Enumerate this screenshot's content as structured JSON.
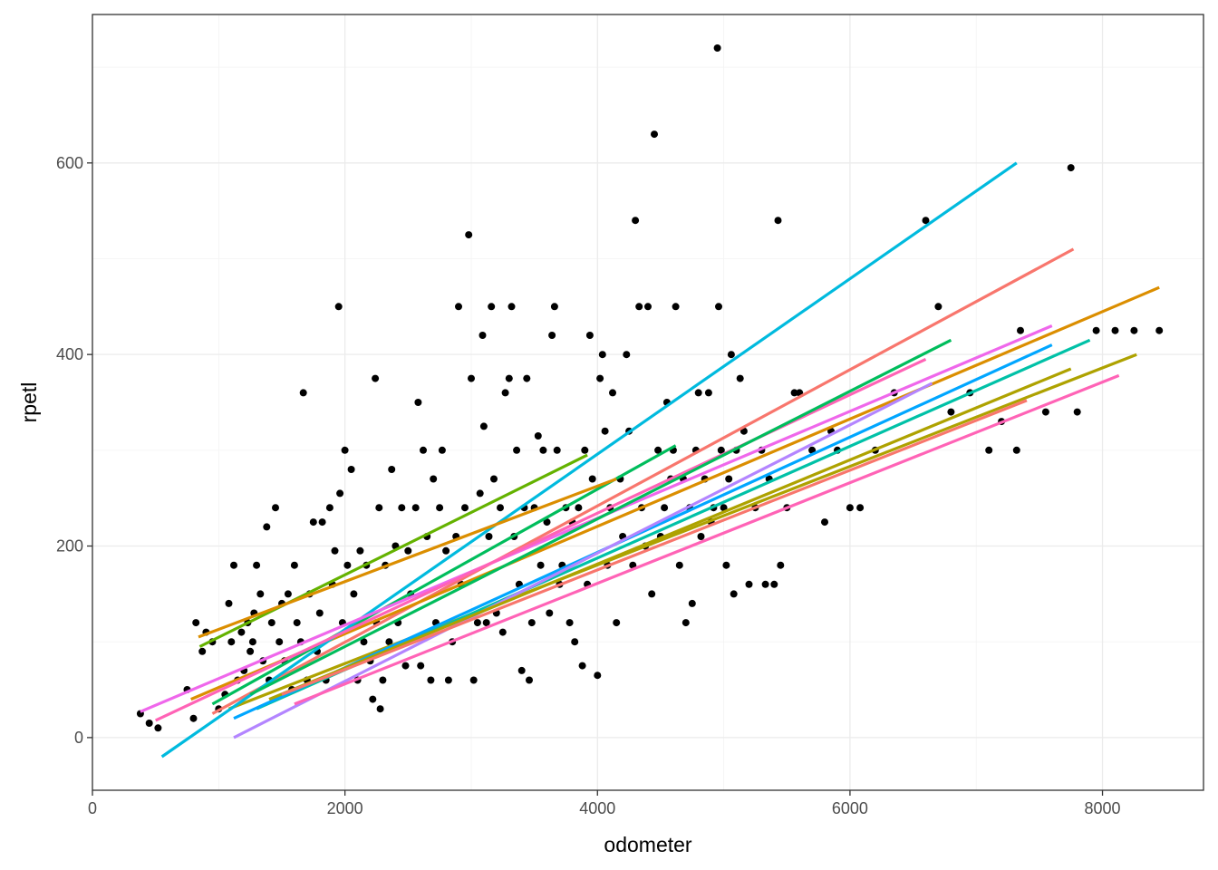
{
  "chart_data": {
    "type": "scatter",
    "xlabel": "odometer",
    "ylabel": "rpetl",
    "xlim": [
      0,
      8800
    ],
    "ylim": [
      -55,
      755
    ],
    "x_ticks": [
      0,
      2000,
      4000,
      6000,
      8000
    ],
    "x_tick_labels": [
      "0",
      "2000",
      "4000",
      "6000",
      "8000"
    ],
    "y_ticks": [
      0,
      200,
      400,
      600
    ],
    "y_tick_labels": [
      "0",
      "200",
      "400",
      "600"
    ],
    "grid": true,
    "legend": "none",
    "points": [
      [
        380,
        25
      ],
      [
        450,
        15
      ],
      [
        520,
        10
      ],
      [
        750,
        50
      ],
      [
        800,
        20
      ],
      [
        820,
        120
      ],
      [
        870,
        90
      ],
      [
        900,
        110
      ],
      [
        950,
        100
      ],
      [
        1000,
        30
      ],
      [
        1050,
        45
      ],
      [
        1080,
        140
      ],
      [
        1100,
        100
      ],
      [
        1120,
        180
      ],
      [
        1150,
        60
      ],
      [
        1180,
        110
      ],
      [
        1200,
        70
      ],
      [
        1230,
        120
      ],
      [
        1250,
        90
      ],
      [
        1270,
        100
      ],
      [
        1280,
        130
      ],
      [
        1300,
        180
      ],
      [
        1330,
        150
      ],
      [
        1350,
        80
      ],
      [
        1380,
        220
      ],
      [
        1400,
        60
      ],
      [
        1420,
        120
      ],
      [
        1450,
        240
      ],
      [
        1480,
        100
      ],
      [
        1500,
        140
      ],
      [
        1520,
        80
      ],
      [
        1550,
        150
      ],
      [
        1580,
        50
      ],
      [
        1600,
        180
      ],
      [
        1620,
        120
      ],
      [
        1650,
        100
      ],
      [
        1670,
        360
      ],
      [
        1700,
        60
      ],
      [
        1720,
        150
      ],
      [
        1750,
        225
      ],
      [
        1780,
        90
      ],
      [
        1800,
        130
      ],
      [
        1820,
        225
      ],
      [
        1850,
        60
      ],
      [
        1880,
        240
      ],
      [
        1900,
        160
      ],
      [
        1920,
        195
      ],
      [
        1950,
        450
      ],
      [
        1960,
        255
      ],
      [
        1980,
        120
      ],
      [
        2000,
        300
      ],
      [
        2020,
        180
      ],
      [
        2050,
        280
      ],
      [
        2070,
        150
      ],
      [
        2100,
        60
      ],
      [
        2120,
        195
      ],
      [
        2150,
        100
      ],
      [
        2170,
        180
      ],
      [
        2200,
        80
      ],
      [
        2220,
        40
      ],
      [
        2240,
        375
      ],
      [
        2250,
        120
      ],
      [
        2270,
        240
      ],
      [
        2280,
        30
      ],
      [
        2300,
        60
      ],
      [
        2320,
        180
      ],
      [
        2350,
        100
      ],
      [
        2370,
        280
      ],
      [
        2400,
        200
      ],
      [
        2420,
        120
      ],
      [
        2450,
        240
      ],
      [
        2480,
        75
      ],
      [
        2500,
        195
      ],
      [
        2520,
        150
      ],
      [
        2560,
        240
      ],
      [
        2580,
        350
      ],
      [
        2600,
        75
      ],
      [
        2620,
        300
      ],
      [
        2650,
        210
      ],
      [
        2680,
        60
      ],
      [
        2700,
        270
      ],
      [
        2720,
        120
      ],
      [
        2750,
        240
      ],
      [
        2770,
        300
      ],
      [
        2800,
        195
      ],
      [
        2820,
        60
      ],
      [
        2850,
        100
      ],
      [
        2880,
        210
      ],
      [
        2900,
        450
      ],
      [
        2920,
        160
      ],
      [
        2950,
        240
      ],
      [
        2980,
        525
      ],
      [
        3000,
        375
      ],
      [
        3020,
        60
      ],
      [
        3050,
        120
      ],
      [
        3070,
        255
      ],
      [
        3090,
        420
      ],
      [
        3100,
        325
      ],
      [
        3120,
        120
      ],
      [
        3140,
        210
      ],
      [
        3160,
        450
      ],
      [
        3180,
        270
      ],
      [
        3200,
        130
      ],
      [
        3230,
        240
      ],
      [
        3250,
        110
      ],
      [
        3270,
        360
      ],
      [
        3300,
        375
      ],
      [
        3320,
        450
      ],
      [
        3340,
        210
      ],
      [
        3360,
        300
      ],
      [
        3380,
        160
      ],
      [
        3400,
        70
      ],
      [
        3420,
        240
      ],
      [
        3440,
        375
      ],
      [
        3460,
        60
      ],
      [
        3480,
        120
      ],
      [
        3500,
        240
      ],
      [
        3530,
        315
      ],
      [
        3550,
        180
      ],
      [
        3570,
        300
      ],
      [
        3600,
        225
      ],
      [
        3620,
        130
      ],
      [
        3640,
        420
      ],
      [
        3660,
        450
      ],
      [
        3680,
        300
      ],
      [
        3700,
        160
      ],
      [
        3720,
        180
      ],
      [
        3750,
        240
      ],
      [
        3780,
        120
      ],
      [
        3800,
        225
      ],
      [
        3820,
        100
      ],
      [
        3850,
        240
      ],
      [
        3880,
        75
      ],
      [
        3900,
        300
      ],
      [
        3920,
        160
      ],
      [
        3940,
        420
      ],
      [
        3960,
        270
      ],
      [
        4000,
        65
      ],
      [
        4020,
        375
      ],
      [
        4040,
        400
      ],
      [
        4060,
        320
      ],
      [
        4080,
        180
      ],
      [
        4100,
        240
      ],
      [
        4120,
        360
      ],
      [
        4150,
        120
      ],
      [
        4180,
        270
      ],
      [
        4200,
        210
      ],
      [
        4230,
        400
      ],
      [
        4250,
        320
      ],
      [
        4280,
        180
      ],
      [
        4300,
        540
      ],
      [
        4330,
        450
      ],
      [
        4350,
        240
      ],
      [
        4380,
        200
      ],
      [
        4400,
        450
      ],
      [
        4430,
        150
      ],
      [
        4450,
        630
      ],
      [
        4480,
        300
      ],
      [
        4500,
        210
      ],
      [
        4530,
        240
      ],
      [
        4550,
        350
      ],
      [
        4580,
        270
      ],
      [
        4600,
        300
      ],
      [
        4620,
        450
      ],
      [
        4650,
        180
      ],
      [
        4680,
        270
      ],
      [
        4700,
        120
      ],
      [
        4730,
        240
      ],
      [
        4750,
        140
      ],
      [
        4780,
        300
      ],
      [
        4800,
        360
      ],
      [
        4820,
        210
      ],
      [
        4850,
        270
      ],
      [
        4880,
        360
      ],
      [
        4900,
        225
      ],
      [
        4920,
        240
      ],
      [
        4950,
        720
      ],
      [
        4960,
        450
      ],
      [
        4980,
        300
      ],
      [
        5000,
        240
      ],
      [
        5020,
        180
      ],
      [
        5040,
        270
      ],
      [
        5060,
        400
      ],
      [
        5080,
        150
      ],
      [
        5100,
        300
      ],
      [
        5130,
        375
      ],
      [
        5160,
        320
      ],
      [
        5200,
        160
      ],
      [
        5250,
        240
      ],
      [
        5300,
        300
      ],
      [
        5330,
        160
      ],
      [
        5360,
        270
      ],
      [
        5400,
        160
      ],
      [
        5430,
        540
      ],
      [
        5450,
        180
      ],
      [
        5500,
        240
      ],
      [
        5560,
        360
      ],
      [
        5600,
        360
      ],
      [
        5700,
        300
      ],
      [
        5800,
        225
      ],
      [
        5850,
        320
      ],
      [
        5900,
        300
      ],
      [
        6000,
        240
      ],
      [
        6080,
        240
      ],
      [
        6200,
        300
      ],
      [
        6350,
        360
      ],
      [
        6600,
        540
      ],
      [
        6700,
        450
      ],
      [
        6800,
        340
      ],
      [
        6950,
        360
      ],
      [
        7100,
        300
      ],
      [
        7200,
        330
      ],
      [
        7320,
        300
      ],
      [
        7350,
        425
      ],
      [
        7550,
        340
      ],
      [
        7750,
        595
      ],
      [
        7800,
        340
      ],
      [
        7950,
        425
      ],
      [
        8100,
        425
      ],
      [
        8250,
        425
      ],
      [
        8450,
        425
      ]
    ],
    "series": [
      {
        "color": "#F8766D",
        "x": [
          950,
          7770
        ],
        "y": [
          25,
          510
        ]
      },
      {
        "color": "#DB8E00",
        "x": [
          780,
          8450
        ],
        "y": [
          40,
          470
        ]
      },
      {
        "color": "#AEA200",
        "x": [
          1080,
          8270
        ],
        "y": [
          30,
          400
        ]
      },
      {
        "color": "#64B200",
        "x": [
          850,
          3920
        ],
        "y": [
          95,
          295
        ]
      },
      {
        "color": "#00BD5C",
        "x": [
          950,
          4620
        ],
        "y": [
          35,
          305
        ]
      },
      {
        "color": "#00C1A7",
        "x": [
          1300,
          7900
        ],
        "y": [
          30,
          415
        ]
      },
      {
        "color": "#00BADE",
        "x": [
          550,
          7320
        ],
        "y": [
          -20,
          600
        ]
      },
      {
        "color": "#00A6FF",
        "x": [
          1120,
          7600
        ],
        "y": [
          20,
          410
        ]
      },
      {
        "color": "#B385FF",
        "x": [
          1120,
          6650
        ],
        "y": [
          0,
          370
        ]
      },
      {
        "color": "#EF67EB",
        "x": [
          380,
          7600
        ],
        "y": [
          27,
          430
        ]
      },
      {
        "color": "#FF63B6",
        "x": [
          500,
          6600
        ],
        "y": [
          18,
          395
        ]
      },
      {
        "color": "#DB8E00",
        "x": [
          840,
          4150
        ],
        "y": [
          105,
          270
        ]
      },
      {
        "color": "#00BD5C",
        "x": [
          1250,
          6800
        ],
        "y": [
          45,
          415
        ]
      },
      {
        "color": "#AEA200",
        "x": [
          1400,
          7750
        ],
        "y": [
          40,
          385
        ]
      },
      {
        "color": "#FF63B6",
        "x": [
          1600,
          8130
        ],
        "y": [
          35,
          378
        ]
      },
      {
        "color": "#F8766D",
        "x": [
          1500,
          7400
        ],
        "y": [
          45,
          352
        ]
      }
    ]
  }
}
